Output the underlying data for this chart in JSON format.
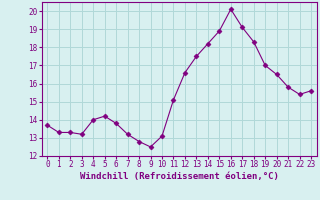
{
  "x": [
    0,
    1,
    2,
    3,
    4,
    5,
    6,
    7,
    8,
    9,
    10,
    11,
    12,
    13,
    14,
    15,
    16,
    17,
    18,
    19,
    20,
    21,
    22,
    23
  ],
  "y": [
    13.7,
    13.3,
    13.3,
    13.2,
    14.0,
    14.2,
    13.8,
    13.2,
    12.8,
    12.5,
    13.1,
    15.1,
    16.6,
    17.5,
    18.2,
    18.9,
    20.1,
    19.1,
    18.3,
    17.0,
    16.5,
    15.8,
    15.4,
    15.6
  ],
  "line_color": "#800080",
  "marker": "D",
  "marker_size": 2.5,
  "bg_color": "#d8f0f0",
  "grid_color": "#b0d8d8",
  "xlabel": "Windchill (Refroidissement éolien,°C)",
  "xlim": [
    -0.5,
    23.5
  ],
  "ylim": [
    12,
    20.5
  ],
  "yticks": [
    12,
    13,
    14,
    15,
    16,
    17,
    18,
    19,
    20
  ],
  "xticks": [
    0,
    1,
    2,
    3,
    4,
    5,
    6,
    7,
    8,
    9,
    10,
    11,
    12,
    13,
    14,
    15,
    16,
    17,
    18,
    19,
    20,
    21,
    22,
    23
  ],
  "tick_color": "#800080",
  "label_color": "#800080",
  "spine_color": "#800080",
  "tick_fontsize": 5.5,
  "xlabel_fontsize": 6.5
}
